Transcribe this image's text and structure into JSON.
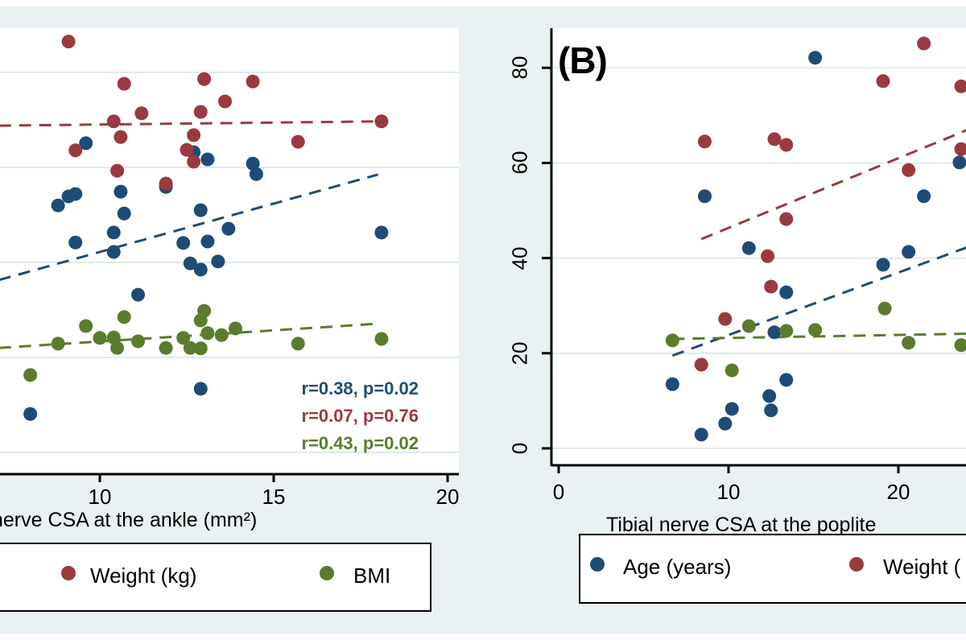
{
  "figure": {
    "background_color": "#e9f1f2",
    "plot_background_color": "#ffffff",
    "gridline_color": "#dfeaec",
    "axis_color": "#000000",
    "series_colors": {
      "age": "#1e4c76",
      "weight": "#9a3a40",
      "bmi": "#5a7c2c"
    }
  },
  "chart_data": [
    {
      "type": "scatter",
      "panel": "left (cropped)",
      "xlabel": "nerve CSA at the ankle (mm²)",
      "xticks": [
        10,
        15,
        20
      ],
      "ygridlines": [
        0,
        20,
        40,
        60,
        80
      ],
      "ylim": [
        0,
        90
      ],
      "grid": true,
      "legend_position": "bottom",
      "legend": [
        "Weight (kg)",
        "BMI"
      ],
      "series": [
        {
          "name": "Age (years)",
          "color": "#1e4c76",
          "annotation": "r=0.38, p=0.02",
          "trend": [
            [
              7.1,
              36.3
            ],
            [
              18.0,
              58.5
            ]
          ],
          "points": [
            [
              9.6,
              65.1
            ],
            [
              12.7,
              63.2
            ],
            [
              13.1,
              61.7
            ],
            [
              11.9,
              55.9
            ],
            [
              10.6,
              54.9
            ],
            [
              9.3,
              54.4
            ],
            [
              9.1,
              53.9
            ],
            [
              8.8,
              52.0
            ],
            [
              10.7,
              50.3
            ],
            [
              12.9,
              51.0
            ],
            [
              13.7,
              47.1
            ],
            [
              10.4,
              46.3
            ],
            [
              9.3,
              44.2
            ],
            [
              12.4,
              44.1
            ],
            [
              13.1,
              44.4
            ],
            [
              10.4,
              42.2
            ],
            [
              14.4,
              60.8
            ],
            [
              14.5,
              58.6
            ],
            [
              18.1,
              46.3
            ],
            [
              11.1,
              33.2
            ],
            [
              12.6,
              39.8
            ],
            [
              12.9,
              38.5
            ],
            [
              13.4,
              40.2
            ],
            [
              12.9,
              13.4
            ],
            [
              8.0,
              8.1
            ]
          ]
        },
        {
          "name": "Weight (kg)",
          "color": "#9a3a40",
          "annotation": "r=0.07, p=0.76",
          "trend": [
            [
              7.1,
              68.8
            ],
            [
              18.1,
              69.7
            ]
          ],
          "points": [
            [
              9.1,
              86.5
            ],
            [
              10.7,
              77.6
            ],
            [
              13.0,
              78.6
            ],
            [
              14.4,
              78.1
            ],
            [
              13.6,
              73.9
            ],
            [
              12.9,
              71.7
            ],
            [
              11.2,
              71.4
            ],
            [
              10.4,
              69.7
            ],
            [
              10.6,
              66.4
            ],
            [
              12.7,
              66.8
            ],
            [
              9.3,
              63.6
            ],
            [
              12.5,
              63.7
            ],
            [
              12.7,
              61.2
            ],
            [
              10.5,
              59.3
            ],
            [
              11.9,
              56.6
            ],
            [
              15.7,
              65.4
            ],
            [
              18.1,
              69.7
            ]
          ]
        },
        {
          "name": "BMI",
          "color": "#5a7c2c",
          "annotation": "r=0.43, p=0.02",
          "trend": [
            [
              7.1,
              22.0
            ],
            [
              18.0,
              27.1
            ]
          ],
          "points": [
            [
              8.8,
              22.9
            ],
            [
              9.6,
              26.6
            ],
            [
              10.0,
              24.1
            ],
            [
              10.4,
              24.2
            ],
            [
              10.5,
              22.0
            ],
            [
              10.7,
              28.5
            ],
            [
              11.1,
              23.4
            ],
            [
              11.9,
              22.0
            ],
            [
              12.4,
              24.1
            ],
            [
              12.6,
              22.0
            ],
            [
              12.9,
              21.9
            ],
            [
              13.0,
              29.8
            ],
            [
              12.9,
              27.8
            ],
            [
              13.1,
              25.1
            ],
            [
              13.5,
              24.7
            ],
            [
              13.9,
              26.1
            ],
            [
              15.7,
              22.9
            ],
            [
              18.1,
              23.9
            ],
            [
              8.0,
              16.3
            ]
          ]
        }
      ]
    },
    {
      "type": "scatter",
      "panel": "B",
      "panel_label": "(B)",
      "xlabel": "Tibial nerve CSA at the poplite",
      "xticks": [
        0,
        10,
        20
      ],
      "yticks": [
        0,
        20,
        40,
        60,
        80
      ],
      "ygridlines": [
        0,
        20,
        40,
        60,
        80
      ],
      "ylim": [
        0,
        88
      ],
      "grid": true,
      "legend_position": "bottom",
      "legend": [
        "Age (years)",
        "Weight ("
      ],
      "series": [
        {
          "name": "Age (years)",
          "color": "#1e4c76",
          "trend": [
            [
              6.7,
              19.5
            ],
            [
              25.6,
              44.3
            ]
          ],
          "points": [
            [
              15.1,
              82.1
            ],
            [
              8.6,
              53.0
            ],
            [
              21.5,
              53.0
            ],
            [
              23.6,
              60.1
            ],
            [
              11.2,
              42.1
            ],
            [
              13.4,
              32.8
            ],
            [
              12.7,
              24.4
            ],
            [
              6.7,
              13.5
            ],
            [
              13.4,
              14.4
            ],
            [
              12.4,
              11.0
            ],
            [
              10.2,
              8.3
            ],
            [
              12.5,
              8.0
            ],
            [
              9.8,
              5.2
            ],
            [
              8.4,
              2.9
            ],
            [
              19.1,
              38.6
            ],
            [
              20.6,
              41.3
            ]
          ]
        },
        {
          "name": "Weight (kg)",
          "color": "#9a3a40",
          "trend": [
            [
              8.4,
              44.0
            ],
            [
              25.6,
              69.2
            ]
          ],
          "points": [
            [
              21.5,
              85.1
            ],
            [
              19.1,
              77.2
            ],
            [
              23.7,
              76.1
            ],
            [
              8.6,
              64.5
            ],
            [
              12.7,
              65.0
            ],
            [
              13.4,
              63.8
            ],
            [
              20.6,
              58.5
            ],
            [
              23.7,
              62.9
            ],
            [
              13.4,
              48.2
            ],
            [
              12.3,
              40.4
            ],
            [
              12.5,
              34.0
            ],
            [
              9.8,
              27.2
            ],
            [
              8.4,
              17.6
            ]
          ]
        },
        {
          "name": "BMI",
          "color": "#5a7c2c",
          "trend": [
            [
              6.7,
              23.0
            ],
            [
              25.6,
              24.2
            ]
          ],
          "points": [
            [
              6.7,
              22.7
            ],
            [
              11.2,
              25.7
            ],
            [
              13.4,
              24.7
            ],
            [
              15.1,
              24.9
            ],
            [
              19.2,
              29.4
            ],
            [
              20.6,
              22.2
            ],
            [
              23.7,
              21.7
            ],
            [
              10.2,
              16.4
            ]
          ]
        }
      ]
    }
  ]
}
